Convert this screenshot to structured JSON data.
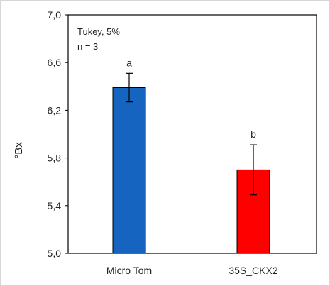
{
  "chart_data": {
    "type": "bar",
    "categories": [
      "Micro Tom",
      "35S_CKX2"
    ],
    "values": [
      6.39,
      5.7
    ],
    "errors": [
      0.12,
      0.21
    ],
    "significance_letters": [
      "a",
      "b"
    ],
    "bar_colors": [
      "#1565c0",
      "#ff0000"
    ],
    "ylabel": "°Bx",
    "xlabel": "",
    "title": "",
    "ylim": [
      5.0,
      7.0
    ],
    "yticks": [
      5.0,
      5.4,
      5.8,
      6.2,
      6.6,
      7.0
    ],
    "ytick_labels": [
      "5,0",
      "5,4",
      "5,8",
      "6,2",
      "6,6",
      "7,0"
    ],
    "annotation": [
      "Tukey, 5%",
      "n = 3"
    ],
    "grid": false
  }
}
